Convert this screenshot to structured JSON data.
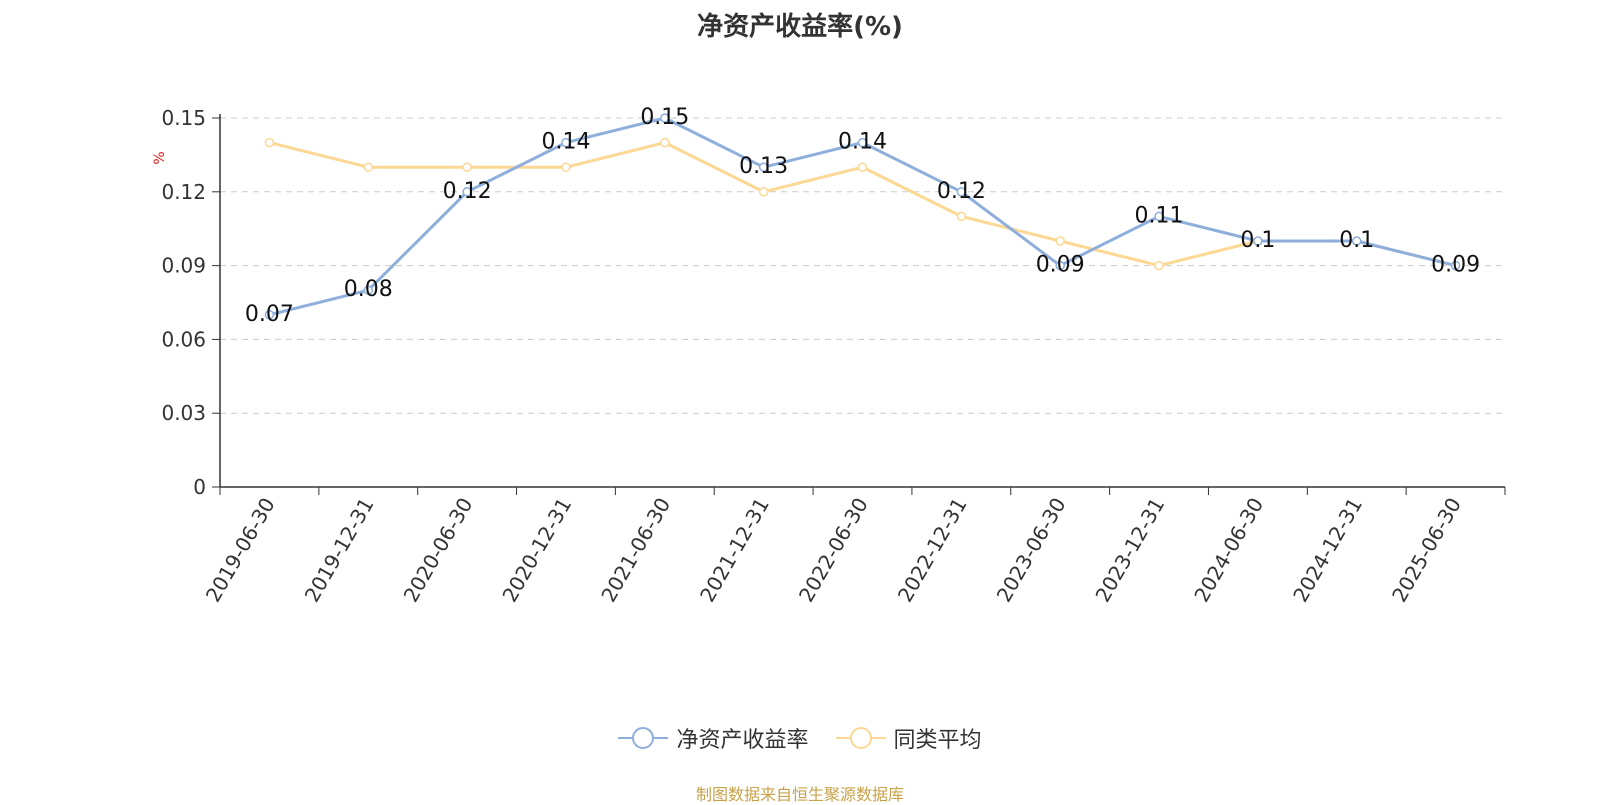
{
  "chart_data": {
    "type": "line",
    "title": "净资产收益率(%)",
    "ylabel": "%",
    "x": [
      "2019-06-30",
      "2019-12-31",
      "2020-06-30",
      "2020-12-31",
      "2021-06-30",
      "2021-12-31",
      "2022-06-30",
      "2022-12-31",
      "2023-06-30",
      "2023-12-31",
      "2024-06-30",
      "2024-12-31",
      "2025-06-30"
    ],
    "y_ticks": [
      "0",
      "0.03",
      "0.06",
      "0.09",
      "0.12",
      "0.15"
    ],
    "ylim": [
      0,
      0.15
    ],
    "grid": true,
    "legend_position": "bottom",
    "series": [
      {
        "name": "净资产收益率",
        "color": "#8eaedb",
        "values": [
          0.07,
          0.08,
          0.12,
          0.14,
          0.15,
          0.13,
          0.14,
          0.12,
          0.09,
          0.11,
          0.1,
          0.1,
          0.09
        ],
        "labels": [
          "0.07",
          "0.08",
          "0.12",
          "0.14",
          "0.15",
          "0.13",
          "0.14",
          "0.12",
          "0.09",
          "0.11",
          "0.1",
          "0.1",
          "0.09"
        ]
      },
      {
        "name": "同类平均",
        "color": "#fcd894",
        "values": [
          0.14,
          0.13,
          0.13,
          0.13,
          0.14,
          0.12,
          0.13,
          0.11,
          0.1,
          0.09,
          0.1,
          0.1,
          0.09
        ]
      }
    ]
  },
  "source_note": "制图数据来自恒生聚源数据库"
}
